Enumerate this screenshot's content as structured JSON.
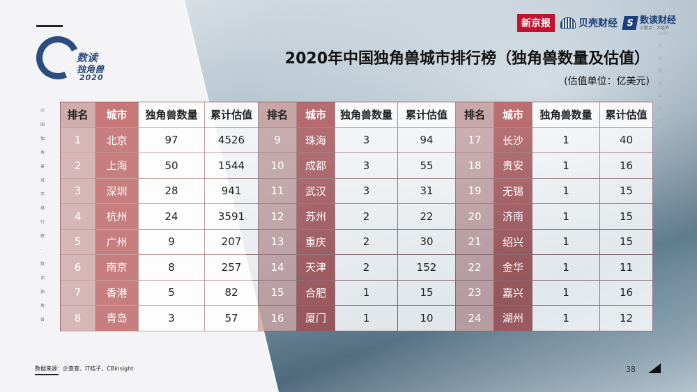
{
  "logo": {
    "line1": "数读",
    "line2": "独角兽",
    "line3": "2020"
  },
  "brands": {
    "xinjingbao": "新京报",
    "beike": "贝壳财经",
    "shudu": "数读财经",
    "shudu_sub": "小数点 · 大经济"
  },
  "title": "2020年中国独角兽城市排行榜（独角兽数量及估值）",
  "unit": "(估值单位：亿美元)",
  "side_left": "中国独角兽城市排行榜 · 数读独角兽",
  "side_right": "2020中国独角兽城市排行榜",
  "table": {
    "headers": [
      "排名",
      "城市",
      "独角兽数量",
      "累计估值",
      "排名",
      "城市",
      "独角兽数量",
      "累计估值",
      "排名",
      "城市",
      "独角兽数量",
      "累计估值"
    ],
    "rows": [
      [
        "1",
        "北京",
        "97",
        "4526",
        "9",
        "珠海",
        "3",
        "94",
        "17",
        "长沙",
        "1",
        "40"
      ],
      [
        "2",
        "上海",
        "50",
        "1544",
        "10",
        "成都",
        "3",
        "55",
        "18",
        "贵安",
        "1",
        "16"
      ],
      [
        "3",
        "深圳",
        "28",
        "941",
        "11",
        "武汉",
        "3",
        "31",
        "19",
        "无锡",
        "1",
        "15"
      ],
      [
        "4",
        "杭州",
        "24",
        "3591",
        "12",
        "苏州",
        "2",
        "22",
        "20",
        "济南",
        "1",
        "15"
      ],
      [
        "5",
        "广州",
        "9",
        "207",
        "13",
        "重庆",
        "2",
        "30",
        "21",
        "绍兴",
        "1",
        "15"
      ],
      [
        "6",
        "南京",
        "8",
        "257",
        "14",
        "天津",
        "2",
        "152",
        "22",
        "金华",
        "1",
        "11"
      ],
      [
        "7",
        "香港",
        "5",
        "82",
        "15",
        "合肥",
        "1",
        "15",
        "23",
        "嘉兴",
        "1",
        "16"
      ],
      [
        "8",
        "青岛",
        "3",
        "57",
        "16",
        "厦门",
        "1",
        "10",
        "24",
        "湖州",
        "1",
        "12"
      ]
    ]
  },
  "source": "数据来源：企查查、IT桔子、CBinsight",
  "page_number": "38"
}
